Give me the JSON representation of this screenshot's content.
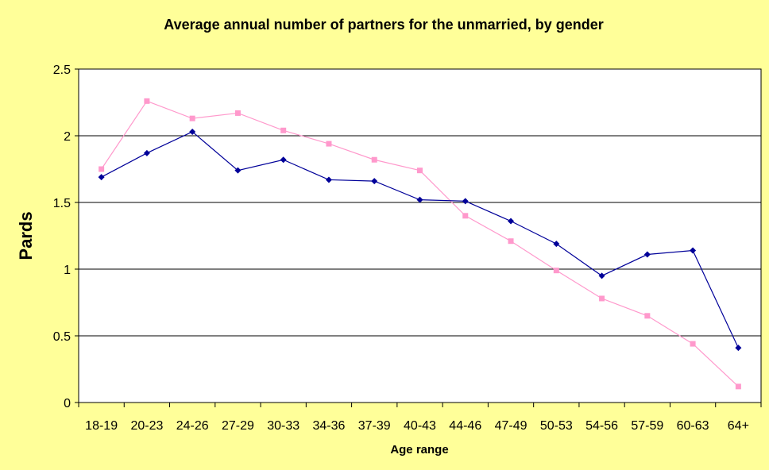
{
  "chart_data": {
    "type": "line",
    "title": "Average annual number of partners for the unmarried, by gender",
    "xlabel": "Age range",
    "ylabel": "Pards",
    "ylim": [
      0,
      2.5
    ],
    "yticks": [
      "0",
      "0.5",
      "1",
      "1.5",
      "2",
      "2.5"
    ],
    "grid": true,
    "legend": "none",
    "categories": [
      "18-19",
      "20-23",
      "24-26",
      "27-29",
      "30-33",
      "34-36",
      "37-39",
      "40-43",
      "44-46",
      "47-49",
      "50-53",
      "54-56",
      "57-59",
      "60-63",
      "64+"
    ],
    "series": [
      {
        "color": "#FF99CC",
        "marker": "square",
        "values": [
          1.75,
          2.26,
          2.13,
          2.17,
          2.04,
          1.94,
          1.82,
          1.74,
          1.4,
          1.21,
          0.99,
          0.78,
          0.65,
          0.44,
          0.12
        ]
      },
      {
        "color": "#000099",
        "marker": "diamond",
        "values": [
          1.69,
          1.87,
          2.03,
          1.74,
          1.82,
          1.67,
          1.66,
          1.52,
          1.51,
          1.36,
          1.19,
          0.95,
          1.11,
          1.14,
          0.41
        ]
      }
    ]
  },
  "colors": {
    "background": "#FFFF99",
    "plot_area": "#FFFFFF",
    "gridline": "#000000"
  }
}
